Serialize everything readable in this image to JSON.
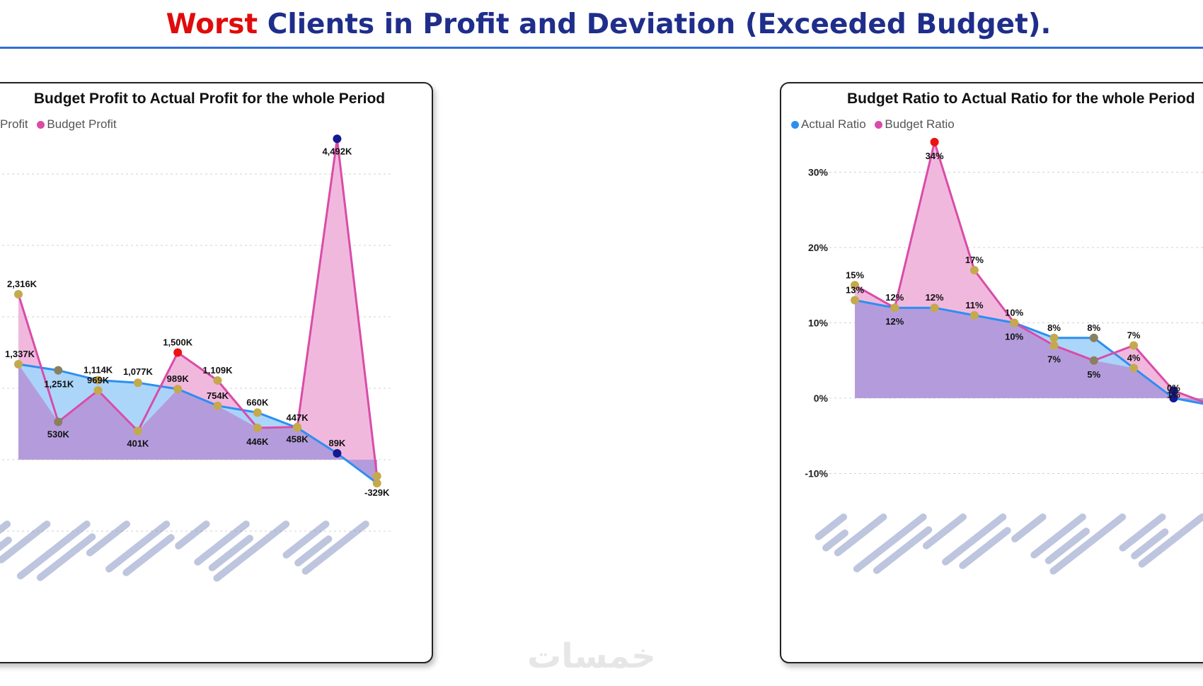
{
  "page": {
    "title_accent": "Worst",
    "title_rest": " Clients in Profit and Deviation (Exceeded Budget).",
    "watermark": "خمسات"
  },
  "colors": {
    "title_blue": "#1f2e8a",
    "title_red": "#e00b0b",
    "actual_line": "#2c8ff0",
    "budget_line": "#d94ca8",
    "budget_fill": "#f0b4dc",
    "actual_fill": "#a6d4fa",
    "overlap_fill": "#b49cdc",
    "marker_gold": "#c4a94e",
    "marker_red": "#ee1111",
    "marker_navy": "#14198f",
    "marker_gray": "#8a7f5e"
  },
  "chart_data": [
    {
      "type": "area",
      "title": "Budget Profit to Actual Profit for the whole Period",
      "legend": [
        "Actual Profit",
        "Budget Profit"
      ],
      "legend_visible": [
        "al Profit",
        "Budget Profit"
      ],
      "categories_note": "client names blurred",
      "ylim": [
        -500,
        4600
      ],
      "series": [
        {
          "name": "Actual Profit",
          "values": [
            1337,
            1251,
            1114,
            1077,
            989,
            754,
            660,
            447,
            89,
            -329
          ],
          "labels": [
            "1,337K",
            "1,251K",
            "1,114K",
            "1,077K",
            "989K",
            "754K",
            "660K",
            "447K",
            "89K",
            "-329K"
          ]
        },
        {
          "name": "Budget Profit",
          "values": [
            2316,
            530,
            969,
            401,
            1500,
            1109,
            446,
            458,
            4492,
            -230
          ],
          "labels": [
            "2,316K",
            "530K",
            "969K",
            "401K",
            "1,500K",
            "1,109K",
            "446K",
            "458K",
            "4,492K",
            ""
          ]
        }
      ]
    },
    {
      "type": "area",
      "title": "Budget Ratio to Actual Ratio for the whole Period",
      "legend": [
        "Actual Ratio",
        "Budget Ratio"
      ],
      "yticks": [
        "30%",
        "20%",
        "10%",
        "0%",
        "-10%"
      ],
      "ytick_values": [
        30,
        20,
        10,
        0,
        -10
      ],
      "ylim": [
        -10,
        34
      ],
      "categories_note": "client names blurred",
      "series": [
        {
          "name": "Actual Ratio",
          "values": [
            13,
            12,
            12,
            11,
            10,
            8,
            8,
            4,
            0,
            -1
          ],
          "labels": [
            "13%",
            "12%",
            "12%",
            "11%",
            "10%",
            "8%",
            "8%",
            "4%",
            "0%",
            ""
          ]
        },
        {
          "name": "Budget Ratio",
          "values": [
            15,
            12,
            34,
            17,
            10,
            7,
            5,
            7,
            1,
            -1
          ],
          "labels": [
            "15%",
            "12%",
            "34%",
            "17%",
            "10%",
            "7%",
            "5%",
            "7%",
            "1%",
            ""
          ]
        }
      ]
    }
  ]
}
